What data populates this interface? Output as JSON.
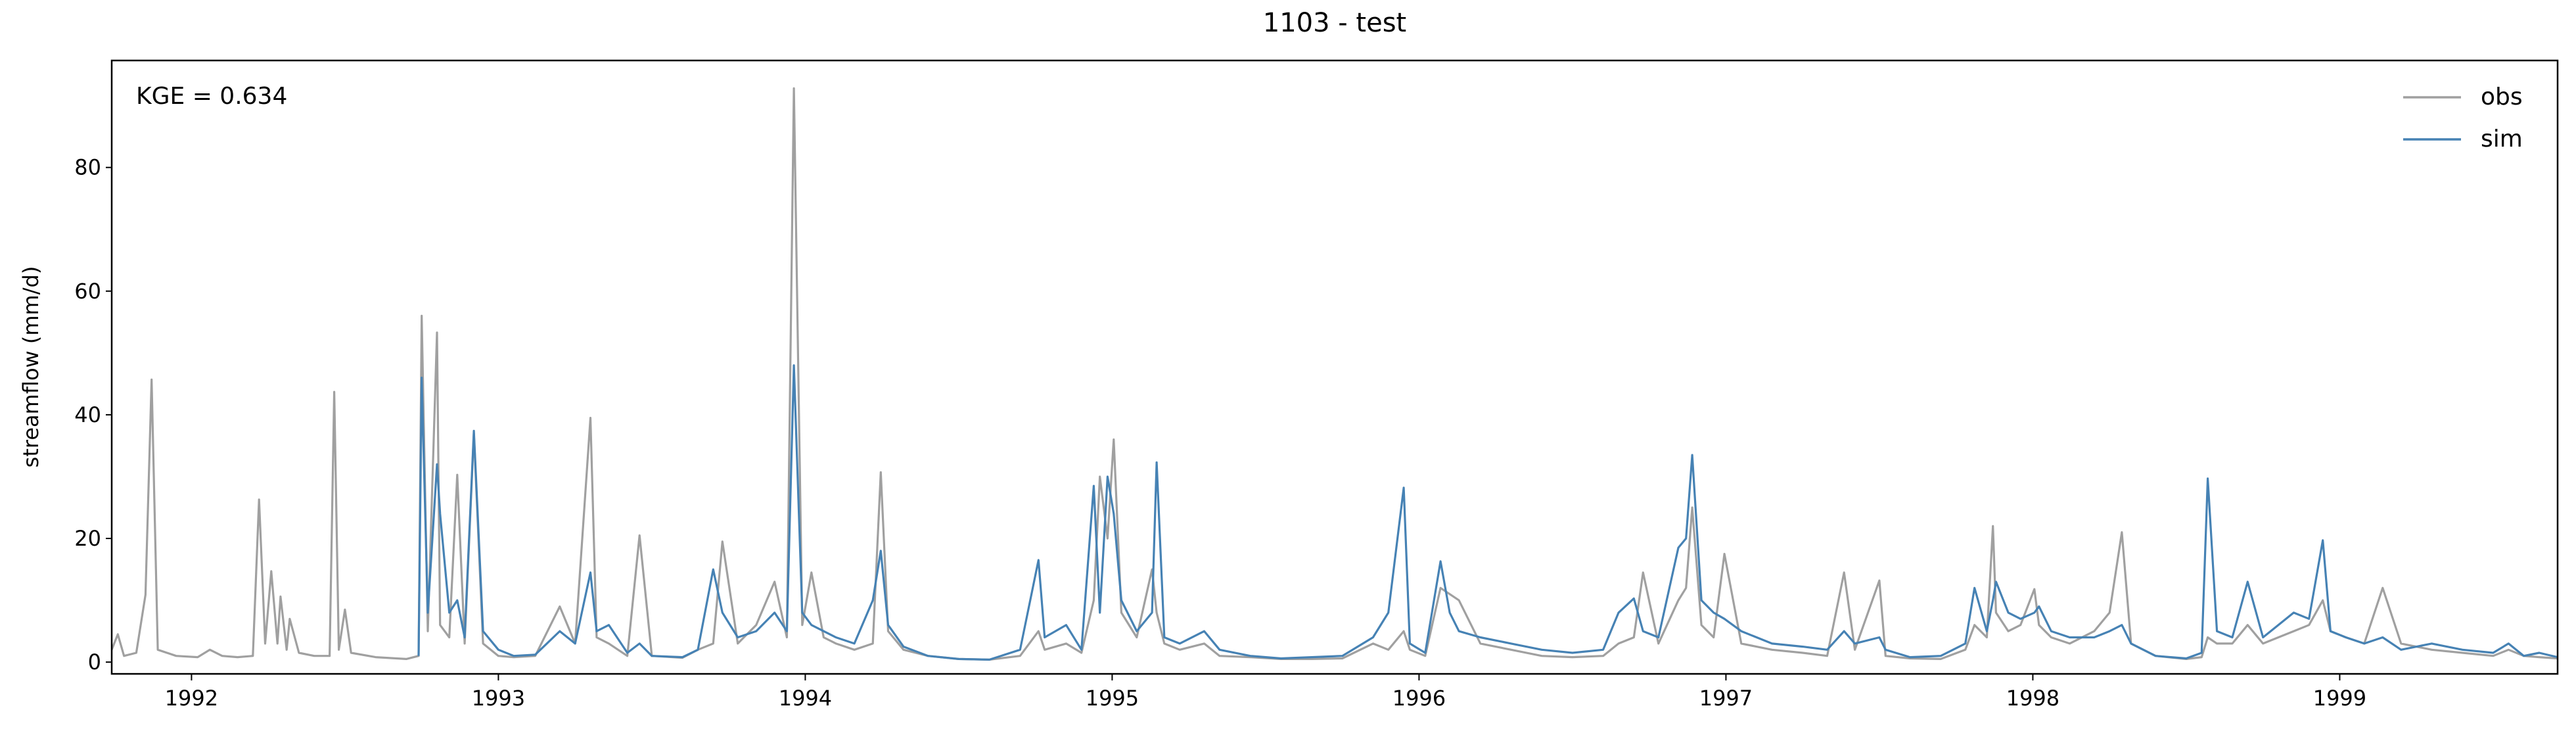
{
  "chart_data": {
    "type": "line",
    "title": "1103 - test",
    "y_label": "streamflow (mm/d)",
    "annotation": "KGE = 0.634",
    "legend_position": "upper right",
    "x": [
      1991.74,
      1991.76,
      1991.78,
      1991.82,
      1991.85,
      1991.87,
      1991.89,
      1991.95,
      1992.02,
      1992.06,
      1992.1,
      1992.15,
      1992.2,
      1992.22,
      1992.24,
      1992.26,
      1992.28,
      1992.29,
      1992.31,
      1992.32,
      1992.35,
      1992.4,
      1992.45,
      1992.465,
      1992.48,
      1992.5,
      1992.52,
      1992.6,
      1992.7,
      1992.74,
      1992.75,
      1992.77,
      1992.8,
      1992.81,
      1992.84,
      1992.866,
      1992.89,
      1992.92,
      1992.95,
      1993.0,
      1993.05,
      1993.12,
      1993.2,
      1993.25,
      1993.3,
      1993.32,
      1993.36,
      1993.42,
      1993.46,
      1993.5,
      1993.6,
      1993.65,
      1993.7,
      1993.73,
      1993.78,
      1993.84,
      1993.9,
      1993.94,
      1993.963,
      1993.99,
      1994.02,
      1994.06,
      1994.1,
      1994.16,
      1994.22,
      1994.246,
      1994.27,
      1994.32,
      1994.4,
      1994.5,
      1994.6,
      1994.7,
      1994.76,
      1994.78,
      1994.85,
      1994.9,
      1994.94,
      1994.96,
      1994.985,
      1995.005,
      1995.03,
      1995.08,
      1995.13,
      1995.145,
      1995.17,
      1995.22,
      1995.3,
      1995.35,
      1995.45,
      1995.55,
      1995.65,
      1995.75,
      1995.85,
      1995.9,
      1995.95,
      1995.97,
      1996.02,
      1996.07,
      1996.1,
      1996.13,
      1996.2,
      1996.3,
      1996.4,
      1996.5,
      1996.6,
      1996.65,
      1996.7,
      1996.73,
      1996.78,
      1996.845,
      1996.87,
      1996.89,
      1996.92,
      1996.96,
      1996.995,
      1997.05,
      1997.15,
      1997.25,
      1997.33,
      1997.385,
      1997.42,
      1997.5,
      1997.52,
      1997.6,
      1997.7,
      1997.78,
      1997.81,
      1997.85,
      1997.87,
      1997.88,
      1997.92,
      1997.96,
      1998.005,
      1998.02,
      1998.06,
      1998.12,
      1998.2,
      1998.25,
      1998.29,
      1998.32,
      1998.4,
      1998.5,
      1998.55,
      1998.57,
      1998.6,
      1998.65,
      1998.7,
      1998.75,
      1998.8,
      1998.85,
      1998.9,
      1998.945,
      1998.97,
      1999.02,
      1999.08,
      1999.14,
      1999.2,
      1999.3,
      1999.4,
      1999.5,
      1999.55,
      1999.6,
      1999.65,
      1999.71
    ],
    "series": [
      {
        "name": "obs",
        "color": "#a0a0a0",
        "values": [
          2,
          4.5,
          1,
          1.5,
          10.9,
          45.7,
          2,
          1,
          0.8,
          2,
          1,
          0.8,
          1,
          26.3,
          3,
          14.7,
          3,
          10.6,
          2,
          7,
          1.5,
          1,
          1,
          43.7,
          2,
          8.5,
          1.5,
          0.8,
          0.5,
          1,
          56,
          5,
          53.3,
          6,
          4,
          30.3,
          3,
          37,
          3,
          1,
          0.8,
          1,
          9,
          3,
          39.5,
          4,
          3,
          1,
          20.5,
          1,
          0.7,
          2,
          3,
          19.5,
          3,
          6,
          13,
          4,
          92.8,
          6,
          14.5,
          4,
          3,
          2,
          3,
          30.7,
          5,
          2,
          1,
          0.5,
          0.4,
          1,
          5,
          2,
          3,
          1.5,
          10,
          30,
          20,
          36,
          8,
          4,
          15,
          8,
          3,
          2,
          3,
          1,
          0.8,
          0.5,
          0.5,
          0.6,
          3,
          2,
          5,
          2,
          1,
          12,
          11,
          10,
          3,
          2,
          1,
          0.8,
          1,
          3,
          4,
          14.5,
          3,
          10,
          12,
          25,
          6,
          4,
          17.5,
          3,
          2,
          1.5,
          1,
          14.5,
          2,
          13.2,
          1,
          0.6,
          0.5,
          2,
          6,
          4,
          22,
          8,
          5,
          6,
          11.8,
          6,
          4,
          3,
          5,
          8,
          21,
          3,
          1,
          0.5,
          0.8,
          4,
          3,
          3,
          6,
          3,
          4,
          5,
          6,
          10,
          5,
          4,
          3,
          12,
          3,
          2,
          1.5,
          1,
          2,
          1,
          0.8,
          0.6
        ]
      },
      {
        "name": "sim",
        "color": "#4682b4",
        "values": [
          null,
          null,
          null,
          null,
          null,
          null,
          null,
          null,
          null,
          null,
          null,
          null,
          null,
          null,
          null,
          null,
          null,
          null,
          null,
          null,
          null,
          null,
          null,
          null,
          null,
          null,
          null,
          null,
          null,
          1,
          46,
          8,
          32,
          24,
          8,
          10,
          4,
          37.4,
          5,
          2,
          1,
          1.2,
          5,
          3,
          14.5,
          5,
          6,
          1.5,
          3,
          1,
          0.8,
          2,
          15,
          8,
          4,
          5,
          8,
          5,
          48,
          8,
          6,
          5,
          4,
          3,
          10,
          18,
          6,
          2.5,
          1,
          0.5,
          0.4,
          2,
          16.5,
          4,
          6,
          2,
          28.5,
          8,
          30,
          24,
          10,
          5,
          8,
          32.3,
          4,
          3,
          5,
          2,
          1,
          0.6,
          0.8,
          1,
          4,
          8,
          28.2,
          3,
          1.5,
          16.3,
          8,
          5,
          4,
          3,
          2,
          1.5,
          2,
          8,
          10.3,
          5,
          4,
          18.5,
          20,
          33.5,
          10,
          8,
          7,
          5,
          3,
          2.5,
          2,
          5,
          3,
          4,
          2,
          0.8,
          1,
          3,
          12,
          5,
          10,
          13,
          8,
          7,
          8,
          9,
          5,
          4,
          4,
          5,
          6,
          3,
          1,
          0.6,
          1.5,
          29.7,
          5,
          4,
          13,
          4,
          6,
          8,
          7,
          19.7,
          5,
          4,
          3,
          4,
          2,
          3,
          2,
          1.5,
          3,
          1,
          1.5,
          0.8
        ]
      }
    ],
    "xlim": [
      1991.74,
      1999.71
    ],
    "xticks": [
      1992,
      1993,
      1994,
      1995,
      1996,
      1997,
      1998,
      1999
    ],
    "ylim": [
      -1.9,
      97.3
    ],
    "yticks": [
      0,
      20,
      40,
      60,
      80
    ],
    "grid": false
  }
}
